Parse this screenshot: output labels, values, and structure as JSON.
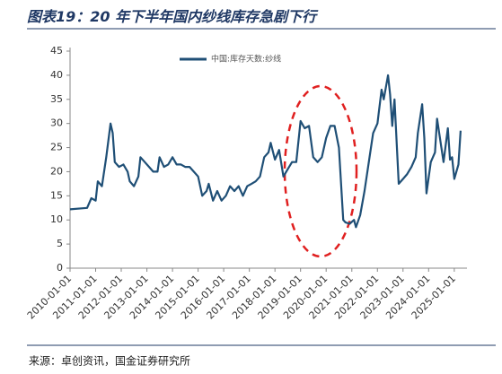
{
  "chart_data": {
    "type": "line",
    "title": "图表19：20 年下半年国内纱线库存急剧下行",
    "source": "来源：卓创资讯，国金证券研究所",
    "x": [
      "2010-01-01",
      "2010-09-01",
      "2010-11-01",
      "2011-01-01",
      "2011-02-01",
      "2011-04-01",
      "2011-06-01",
      "2011-08-01",
      "2011-09-01",
      "2011-10-01",
      "2011-12-01",
      "2012-02-01",
      "2012-04-01",
      "2012-05-01",
      "2012-07-01",
      "2012-09-01",
      "2012-10-01",
      "2012-12-01",
      "2013-02-01",
      "2013-04-01",
      "2013-06-01",
      "2013-07-01",
      "2013-09-01",
      "2013-11-01",
      "2014-01-01",
      "2014-03-01",
      "2014-05-01",
      "2014-07-01",
      "2014-09-01",
      "2014-11-01",
      "2015-01-01",
      "2015-03-01",
      "2015-05-01",
      "2015-06-01",
      "2015-08-01",
      "2015-10-01",
      "2015-12-01",
      "2016-02-01",
      "2016-04-01",
      "2016-06-01",
      "2016-08-01",
      "2016-10-01",
      "2016-12-01",
      "2017-02-01",
      "2017-04-01",
      "2017-06-01",
      "2017-08-01",
      "2017-10-01",
      "2017-11-01",
      "2018-01-01",
      "2018-03-01",
      "2018-05-01",
      "2018-07-01",
      "2018-09-01",
      "2018-11-01",
      "2019-01-01",
      "2019-03-01",
      "2019-05-01",
      "2019-07-01",
      "2019-09-01",
      "2019-11-01",
      "2020-01-01",
      "2020-03-01",
      "2020-05-01",
      "2020-07-01",
      "2020-09-01",
      "2020-10-01",
      "2020-12-01",
      "2021-02-01",
      "2021-03-01",
      "2021-05-01",
      "2021-07-01",
      "2021-09-01",
      "2021-11-01",
      "2022-01-01",
      "2022-03-01",
      "2022-04-01",
      "2022-06-01",
      "2022-07-01",
      "2022-08-01",
      "2022-09-01",
      "2022-11-01",
      "2023-01-01",
      "2023-03-01",
      "2023-05-01",
      "2023-07-01",
      "2023-08-01",
      "2023-10-01",
      "2023-11-01",
      "2023-12-01",
      "2024-02-01",
      "2024-04-01",
      "2024-05-01",
      "2024-07-01",
      "2024-08-01",
      "2024-10-01",
      "2024-11-01",
      "2024-12-01",
      "2025-01-01",
      "2025-03-01",
      "2025-04-01"
    ],
    "series": [
      {
        "name": "中国:库存天数:纱线",
        "color": "#1f4f76",
        "values": [
          12.2,
          12.5,
          14.5,
          14,
          18,
          17,
          23,
          30,
          28,
          22,
          21,
          21.5,
          20,
          18,
          17,
          19,
          23,
          22,
          21,
          20,
          20,
          23,
          21,
          21.5,
          23,
          21.5,
          21.5,
          21,
          21,
          20,
          19,
          15,
          16,
          17.5,
          14,
          16,
          14,
          15,
          17,
          16,
          17,
          15,
          17,
          17.5,
          18,
          19,
          23,
          24,
          26,
          22.5,
          24.5,
          19,
          20.5,
          22,
          22,
          30.5,
          29,
          29.5,
          23,
          22,
          23,
          27,
          29.5,
          29.5,
          25,
          10,
          9.5,
          9.2,
          10,
          8.5,
          11,
          16,
          22,
          28,
          30,
          37,
          35,
          40,
          36,
          29.5,
          35,
          17.5,
          18.5,
          19.5,
          21,
          23,
          28,
          34,
          27,
          15.5,
          22,
          24,
          31,
          25,
          22,
          29,
          22.5,
          23,
          18.5,
          21.5,
          28.5
        ]
      }
    ],
    "xlim": [
      "2010-01-01",
      "2025-07-01"
    ],
    "xticks": [
      "2010-01-01",
      "2011-01-01",
      "2012-01-01",
      "2013-01-01",
      "2014-01-01",
      "2015-01-01",
      "2016-01-01",
      "2017-01-01",
      "2018-01-01",
      "2019-01-01",
      "2020-01-01",
      "2021-01-01",
      "2022-01-01",
      "2023-01-01",
      "2024-01-01",
      "2025-01-01"
    ],
    "ylim": [
      0,
      45
    ],
    "yticks": [
      0,
      5,
      10,
      15,
      20,
      25,
      30,
      35,
      40,
      45
    ],
    "grid": false
  }
}
